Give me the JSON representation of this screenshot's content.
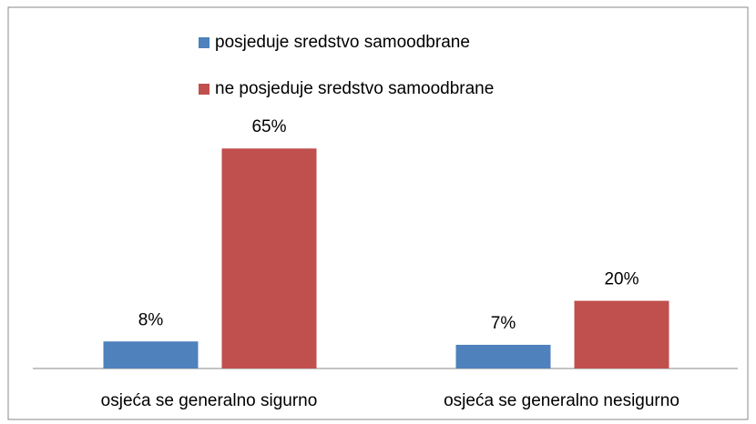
{
  "chart_data": {
    "type": "bar",
    "categories": [
      "osjeća se generalno sigurno",
      "osjeća se generalno nesigurno"
    ],
    "series": [
      {
        "name": "posjeduje sredstvo samoodbrane",
        "color": "#4f81bd",
        "values": [
          8,
          7
        ],
        "value_labels": [
          "8%",
          "7%"
        ]
      },
      {
        "name": "ne posjeduje sredstvo samoodbrane",
        "color": "#c0504d",
        "values": [
          65,
          20
        ],
        "value_labels": [
          "65%",
          "20%"
        ]
      }
    ]
  }
}
